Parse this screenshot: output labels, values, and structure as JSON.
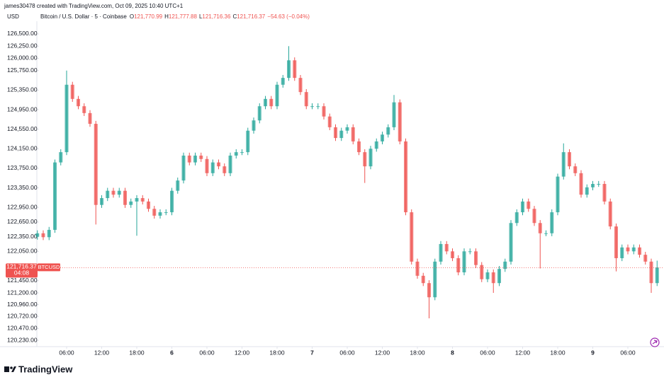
{
  "header": {
    "creator": "james30478 created with TradingView.com, Oct 09, 2025 10:40 UTC+1",
    "currency": "USD",
    "symbol": "Bitcoin / U.S. Dollar · 5 · Coinbase",
    "ohlc": [
      {
        "key": "O",
        "value": "121,770.99"
      },
      {
        "key": "H",
        "value": "121,777.88"
      },
      {
        "key": "L",
        "value": "121,716.36"
      },
      {
        "key": "C",
        "value": "121,716.37"
      }
    ],
    "change": "−54.63 (−0.04%)"
  },
  "logo": "TradingView",
  "chart_data": {
    "type": "candlestick",
    "x": [
      1,
      2,
      3,
      4,
      5,
      6,
      7,
      8,
      9,
      10,
      11,
      12,
      13,
      14,
      15,
      16,
      17,
      18,
      19,
      20,
      21,
      22,
      23,
      24,
      25,
      26,
      27,
      28,
      29,
      30,
      31,
      32,
      33,
      34,
      35,
      36,
      37,
      38,
      39,
      40,
      41,
      42,
      43,
      44,
      45,
      46,
      47,
      48,
      49,
      50,
      51,
      52,
      53,
      54,
      55,
      56,
      57,
      58,
      59,
      60,
      61,
      62,
      63,
      64,
      65,
      66,
      67,
      68,
      69,
      70,
      71,
      72,
      73,
      74,
      75,
      76,
      77,
      78,
      79,
      80,
      81,
      82,
      83,
      84,
      85,
      86,
      87,
      88,
      89,
      90,
      91,
      92,
      93,
      94,
      95,
      96,
      97,
      98,
      99,
      100,
      101,
      102,
      103,
      104,
      105,
      106,
      107
    ],
    "open": [
      122350,
      122420,
      122340,
      122490,
      123870,
      124080,
      125460,
      125170,
      125020,
      124880,
      124660,
      123000,
      123140,
      123290,
      123210,
      123290,
      123000,
      123070,
      123140,
      123070,
      122920,
      122780,
      122850,
      122850,
      123290,
      123500,
      124010,
      123870,
      124010,
      123940,
      123650,
      123870,
      123790,
      123650,
      124010,
      124080,
      124080,
      124520,
      124730,
      125020,
      125170,
      125020,
      125460,
      125600,
      125960,
      125600,
      125310,
      125020,
      125020,
      125020,
      124810,
      124590,
      124370,
      124520,
      124590,
      124300,
      124080,
      123790,
      124150,
      124300,
      124440,
      124590,
      125100,
      124300,
      122850,
      121840,
      121550,
      121400,
      121110,
      121840,
      122200,
      122050,
      121910,
      121620,
      122050,
      122050,
      121770,
      121480,
      121620,
      121400,
      121690,
      121840,
      122630,
      122850,
      123070,
      122920,
      122630,
      122420,
      122420,
      122850,
      123580,
      124080,
      123790,
      123650,
      123210,
      123360,
      123430,
      123430,
      123070,
      122560,
      121910,
      122130,
      122050,
      122130,
      121980,
      121840,
      121400
    ],
    "high": [
      122480,
      122480,
      122550,
      123930,
      124140,
      125750,
      125520,
      125230,
      125080,
      124940,
      124720,
      123200,
      123350,
      123350,
      123350,
      123350,
      123130,
      123200,
      123200,
      123130,
      122980,
      122910,
      122910,
      123350,
      123560,
      124070,
      124070,
      124070,
      124070,
      124000,
      123930,
      123930,
      123850,
      124070,
      124140,
      124140,
      124580,
      124790,
      125080,
      125230,
      125230,
      125520,
      125660,
      126250,
      126020,
      125660,
      125370,
      125080,
      125080,
      125080,
      124870,
      124650,
      124580,
      124650,
      124650,
      124360,
      124140,
      124210,
      124360,
      124500,
      124650,
      125250,
      125160,
      124360,
      122910,
      121900,
      121610,
      121460,
      121900,
      122260,
      122260,
      122110,
      121970,
      122110,
      122110,
      122110,
      121830,
      121680,
      121680,
      121750,
      121900,
      122690,
      122910,
      123130,
      123130,
      122980,
      122690,
      122480,
      122910,
      123640,
      124260,
      124140,
      123850,
      123710,
      123420,
      123490,
      123490,
      123490,
      123130,
      122620,
      122190,
      122190,
      122190,
      122190,
      122040,
      121900,
      121860
    ],
    "low": [
      122290,
      122280,
      122280,
      122430,
      123810,
      124020,
      125110,
      124960,
      124820,
      124600,
      122600,
      122940,
      123080,
      123150,
      123150,
      122940,
      122940,
      122370,
      123010,
      122860,
      122720,
      122720,
      122790,
      122790,
      123230,
      123440,
      123810,
      123810,
      123880,
      123590,
      123590,
      123730,
      123590,
      123590,
      123950,
      124020,
      124020,
      124460,
      124670,
      124960,
      124960,
      124960,
      125400,
      125540,
      125540,
      125250,
      124960,
      124960,
      124960,
      124750,
      124530,
      124310,
      124310,
      124460,
      124240,
      124020,
      123450,
      123730,
      124090,
      124240,
      124380,
      124530,
      124240,
      122790,
      121780,
      121490,
      121340,
      120680,
      121050,
      121780,
      121990,
      121850,
      121560,
      121560,
      121990,
      121710,
      121420,
      121420,
      121200,
      121340,
      121630,
      121780,
      122570,
      122790,
      122860,
      122570,
      121700,
      122360,
      122360,
      122790,
      123520,
      123730,
      123590,
      123150,
      123150,
      123300,
      123370,
      123010,
      122500,
      121640,
      121850,
      121990,
      121990,
      121920,
      121780,
      121200,
      121340
    ],
    "close": [
      122420,
      122340,
      122490,
      123870,
      124080,
      125460,
      125170,
      125020,
      124880,
      124660,
      123000,
      123140,
      123290,
      123210,
      123290,
      123000,
      123070,
      123140,
      123070,
      122920,
      122780,
      122850,
      122850,
      123290,
      123500,
      124010,
      123870,
      124010,
      123940,
      123650,
      123870,
      123790,
      123650,
      124010,
      124080,
      124080,
      124520,
      124730,
      125020,
      125170,
      125020,
      125460,
      125600,
      125960,
      125600,
      125310,
      125020,
      125020,
      125020,
      124810,
      124590,
      124370,
      124520,
      124590,
      124300,
      124080,
      123790,
      124150,
      124300,
      124440,
      124590,
      125100,
      124300,
      122850,
      121840,
      121550,
      121400,
      121110,
      121840,
      122200,
      122050,
      121910,
      121620,
      122050,
      122050,
      121770,
      121480,
      121620,
      121400,
      121690,
      121840,
      122630,
      122850,
      123070,
      122920,
      122630,
      122420,
      122420,
      122850,
      123580,
      124080,
      123790,
      123650,
      123210,
      123360,
      123430,
      123430,
      123070,
      122560,
      121910,
      122130,
      122050,
      122130,
      121980,
      121840,
      121400,
      121720
    ],
    "up_color": "#26a69a",
    "down_color": "#ef5350",
    "xlim": [
      0,
      108
    ],
    "xticks": [
      {
        "value": 6,
        "label": "06:00"
      },
      {
        "value": 12,
        "label": "12:00"
      },
      {
        "value": 18,
        "label": "18:00"
      },
      {
        "value": 24,
        "label": "6"
      },
      {
        "value": 30,
        "label": "06:00"
      },
      {
        "value": 36,
        "label": "12:00"
      },
      {
        "value": 42,
        "label": "18:00"
      },
      {
        "value": 48,
        "label": "7"
      },
      {
        "value": 54,
        "label": "06:00"
      },
      {
        "value": 60,
        "label": "12:00"
      },
      {
        "value": 66,
        "label": "18:00"
      },
      {
        "value": 72,
        "label": "8"
      },
      {
        "value": 78,
        "label": "06:00"
      },
      {
        "value": 84,
        "label": "12:00"
      },
      {
        "value": 90,
        "label": "18:00"
      },
      {
        "value": 96,
        "label": "9"
      },
      {
        "value": 102,
        "label": "06:00"
      }
    ],
    "ylim": [
      120100,
      126760
    ],
    "yticks": [
      {
        "value": 126500,
        "label": "126,500.00"
      },
      {
        "value": 126250,
        "label": "126,250.00"
      },
      {
        "value": 126000,
        "label": "126,000.00"
      },
      {
        "value": 125750,
        "label": "125,750.00"
      },
      {
        "value": 125350,
        "label": "125,350.00"
      },
      {
        "value": 124950,
        "label": "124,950.00"
      },
      {
        "value": 124550,
        "label": "124,550.00"
      },
      {
        "value": 124150,
        "label": "124,150.00"
      },
      {
        "value": 123750,
        "label": "123,750.00"
      },
      {
        "value": 123350,
        "label": "123,350.00"
      },
      {
        "value": 122950,
        "label": "122,950.00"
      },
      {
        "value": 122650,
        "label": "122,650.00"
      },
      {
        "value": 122350,
        "label": "122,350.00"
      },
      {
        "value": 122050,
        "label": "122,050.00"
      },
      {
        "value": 121450,
        "label": "121,450.00"
      },
      {
        "value": 121200,
        "label": "121,200.00"
      },
      {
        "value": 120960,
        "label": "120,960.00"
      },
      {
        "value": 120720,
        "label": "120,720.00"
      },
      {
        "value": 120470,
        "label": "120,470.00"
      },
      {
        "value": 120230,
        "label": "120,230.00"
      }
    ],
    "last_price": {
      "value": 121716.37,
      "label": "121,716.37"
    },
    "symbol_tag": "BTCUSD",
    "countdown": "04:08"
  }
}
